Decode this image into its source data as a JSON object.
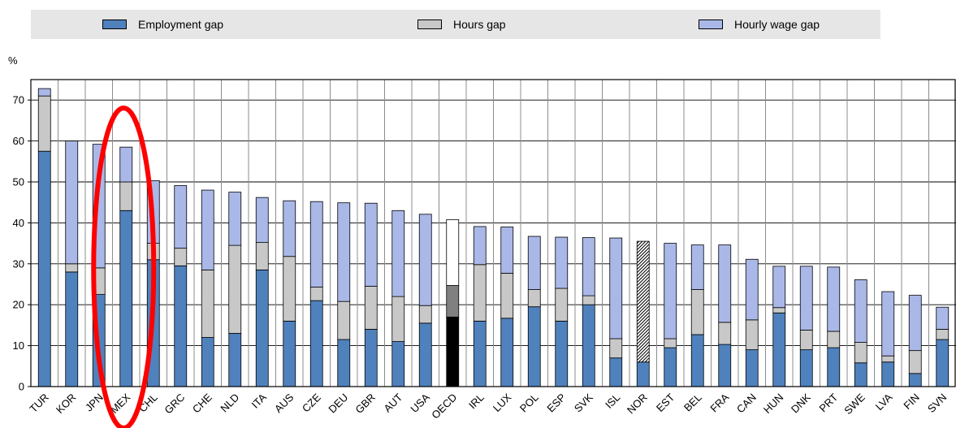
{
  "chart_data": {
    "type": "bar",
    "stacked": true,
    "ylabel": "%",
    "ylim": [
      0,
      75
    ],
    "yticks": [
      0,
      10,
      20,
      30,
      40,
      50,
      60,
      70
    ],
    "grid": true,
    "legend_position": "top",
    "categories": [
      "TUR",
      "KOR",
      "JPN",
      "MEX",
      "CHL",
      "GRC",
      "CHE",
      "NLD",
      "ITA",
      "AUS",
      "CZE",
      "DEU",
      "GBR",
      "AUT",
      "USA",
      "OECD",
      "IRL",
      "LUX",
      "POL",
      "ESP",
      "SVK",
      "ISL",
      "NOR",
      "EST",
      "BEL",
      "FRA",
      "CAN",
      "HUN",
      "DNK",
      "PRT",
      "SWE",
      "LVA",
      "FIN",
      "SVN"
    ],
    "highlight_category": "MEX",
    "special_categories": {
      "OECD": {
        "colors": [
          "#000000",
          "#808080",
          "#ffffff"
        ]
      },
      "NOR": {
        "hatched_total": true
      }
    },
    "series": [
      {
        "name": "Employment gap",
        "color": "#4f81bd",
        "values": [
          57.5,
          28,
          22.5,
          43,
          31,
          29.5,
          12,
          13,
          28.5,
          16,
          21,
          11.5,
          14,
          11,
          15.5,
          17,
          16,
          16.7,
          19.5,
          16,
          20,
          7,
          6,
          9.5,
          12.7,
          10.3,
          9,
          18,
          9,
          9.5,
          5.8,
          6,
          3.2,
          11.5
        ]
      },
      {
        "name": "Hours gap",
        "color": "#c8c8c8",
        "values": [
          13.5,
          2,
          6.5,
          7,
          4,
          4.3,
          16.5,
          21.5,
          6.7,
          15.8,
          3.3,
          9.3,
          10.5,
          11,
          4.3,
          7.7,
          13.8,
          11,
          4.2,
          8,
          2.2,
          4.7,
          0,
          2.2,
          11,
          5.4,
          7.3,
          1.3,
          4.8,
          4,
          5,
          1.5,
          5.6,
          2.5
        ]
      },
      {
        "name": "Hourly wage gap",
        "color": "#aab8e8",
        "values": [
          1.8,
          30,
          30.2,
          8.5,
          15.3,
          15.3,
          19.5,
          13,
          11,
          13.6,
          20.9,
          24.1,
          20.3,
          21,
          22.3,
          16.1,
          9.3,
          11.3,
          13,
          12.5,
          14.2,
          24.6,
          29.5,
          23.3,
          10.9,
          18.9,
          14.8,
          10.1,
          15.6,
          15.7,
          15.3,
          15.7,
          13.5,
          5.4
        ]
      }
    ]
  }
}
